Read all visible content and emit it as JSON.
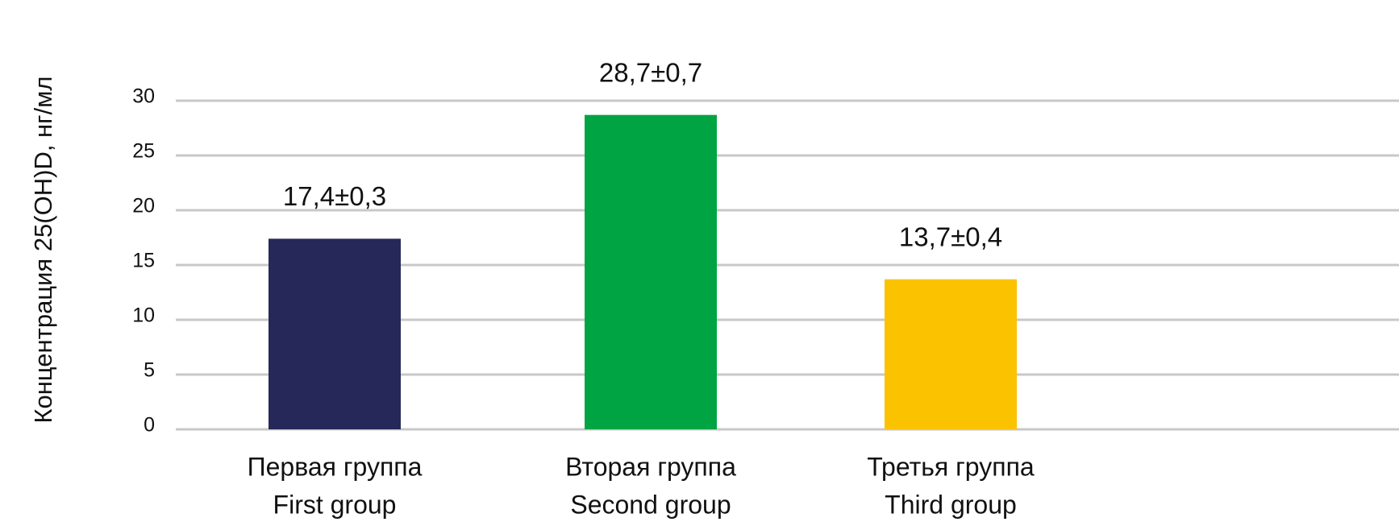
{
  "chart_data": {
    "type": "bar",
    "y_axis_label": "Концентрация 25(OH)D, нг/мл",
    "categories": [
      [
        "Первая группа",
        "First group"
      ],
      [
        "Вторая группа",
        "Second group"
      ],
      [
        "Третья группа",
        "Third group"
      ]
    ],
    "values": [
      17.4,
      28.7,
      13.7
    ],
    "value_labels": [
      "17,4±0,3",
      "28,7±0,7",
      "13,7±0,4"
    ],
    "colors": [
      "#252858",
      "#00a443",
      "#fbc200"
    ],
    "ylim": [
      0,
      30
    ],
    "yticks": [
      0,
      5,
      10,
      15,
      20,
      25,
      30
    ],
    "grid": true
  }
}
